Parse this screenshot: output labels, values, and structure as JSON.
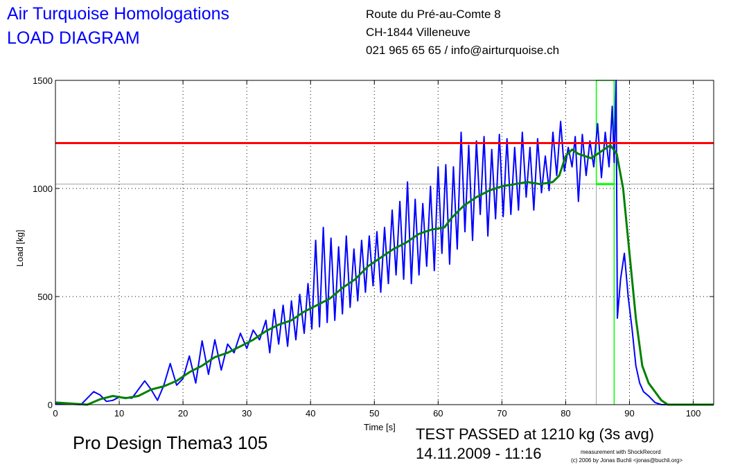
{
  "header": {
    "company": "Air Turquoise Homologations",
    "doc_type": "LOAD DIAGRAM",
    "address_line1": "Route du Pré-au-Comte 8",
    "address_line2": "CH-1844 Villeneuve",
    "contact": "021 965 65 65 / info@airturquoise.ch"
  },
  "footer": {
    "product": "Pro Design Thema3 105",
    "result": "TEST PASSED at 1210 kg (3s avg)",
    "datetime": "14.11.2009 - 11:16",
    "credit_line1": "measurement with ShockRecord",
    "credit_line2": "(c) 2006 by Jonas Buchli <jonas@buchli.org>"
  },
  "chart_data": {
    "type": "line",
    "xlabel": "Time [s]",
    "ylabel": "Load [kg]",
    "xlim": [
      0,
      103.2
    ],
    "ylim": [
      0,
      1500
    ],
    "xticks": [
      0,
      10,
      20,
      30,
      40,
      50,
      60,
      70,
      80,
      90,
      100
    ],
    "yticks": [
      0,
      500,
      1000,
      1500
    ],
    "grid": true,
    "reference_lines": {
      "pass_load": 1210,
      "threshold_load": 1020,
      "window_start": 84.8,
      "window_end": 87.6
    },
    "colors": {
      "raw": "#0000ff",
      "avg": "#008000",
      "pass": "#ff0000",
      "window": "#00ff00",
      "threshold": "#a0a0a0"
    },
    "series": [
      {
        "key": "raw",
        "points": [
          [
            0,
            5
          ],
          [
            4,
            0
          ],
          [
            6,
            60
          ],
          [
            7,
            45
          ],
          [
            8,
            15
          ],
          [
            9,
            20
          ],
          [
            10,
            35
          ],
          [
            12,
            30
          ],
          [
            14,
            110
          ],
          [
            15,
            70
          ],
          [
            16,
            20
          ],
          [
            17,
            90
          ],
          [
            18,
            190
          ],
          [
            19,
            90
          ],
          [
            20,
            120
          ],
          [
            21,
            225
          ],
          [
            22,
            100
          ],
          [
            23,
            295
          ],
          [
            24,
            140
          ],
          [
            25,
            300
          ],
          [
            26,
            160
          ],
          [
            27,
            280
          ],
          [
            28,
            240
          ],
          [
            29,
            330
          ],
          [
            30,
            260
          ],
          [
            31,
            345
          ],
          [
            32,
            300
          ],
          [
            33,
            390
          ],
          [
            33.6,
            240
          ],
          [
            34.3,
            440
          ],
          [
            35,
            280
          ],
          [
            35.7,
            460
          ],
          [
            36.4,
            270
          ],
          [
            37,
            480
          ],
          [
            37.7,
            300
          ],
          [
            38.3,
            510
          ],
          [
            39,
            330
          ],
          [
            39.6,
            560
          ],
          [
            40.2,
            350
          ],
          [
            40.8,
            760
          ],
          [
            41.4,
            360
          ],
          [
            42,
            820
          ],
          [
            42.6,
            380
          ],
          [
            43.2,
            770
          ],
          [
            43.8,
            390
          ],
          [
            44.4,
            730
          ],
          [
            45,
            420
          ],
          [
            45.6,
            780
          ],
          [
            46.2,
            450
          ],
          [
            46.8,
            720
          ],
          [
            47.4,
            480
          ],
          [
            48,
            760
          ],
          [
            48.6,
            520
          ],
          [
            49.2,
            780
          ],
          [
            49.8,
            550
          ],
          [
            50.4,
            800
          ],
          [
            51,
            520
          ],
          [
            51.6,
            820
          ],
          [
            52.2,
            560
          ],
          [
            52.8,
            900
          ],
          [
            53.4,
            600
          ],
          [
            54,
            940
          ],
          [
            54.6,
            580
          ],
          [
            55.2,
            1030
          ],
          [
            55.8,
            560
          ],
          [
            56.4,
            950
          ],
          [
            57,
            600
          ],
          [
            57.6,
            930
          ],
          [
            58.2,
            640
          ],
          [
            58.8,
            1010
          ],
          [
            59.4,
            620
          ],
          [
            60,
            1100
          ],
          [
            60.6,
            700
          ],
          [
            61.2,
            1110
          ],
          [
            61.8,
            650
          ],
          [
            62.4,
            1100
          ],
          [
            63,
            720
          ],
          [
            63.6,
            1260
          ],
          [
            64.2,
            800
          ],
          [
            64.8,
            1200
          ],
          [
            65.4,
            760
          ],
          [
            66,
            1220
          ],
          [
            66.6,
            880
          ],
          [
            67.2,
            1240
          ],
          [
            67.8,
            780
          ],
          [
            68.4,
            1180
          ],
          [
            69,
            860
          ],
          [
            69.6,
            1250
          ],
          [
            70.2,
            870
          ],
          [
            70.8,
            1230
          ],
          [
            71.4,
            880
          ],
          [
            72,
            1190
          ],
          [
            72.6,
            900
          ],
          [
            73.2,
            1260
          ],
          [
            73.8,
            960
          ],
          [
            74.4,
            1190
          ],
          [
            75,
            900
          ],
          [
            75.6,
            1230
          ],
          [
            76.2,
            980
          ],
          [
            76.8,
            1150
          ],
          [
            77.4,
            990
          ],
          [
            78,
            1260
          ],
          [
            78.6,
            1060
          ],
          [
            79.2,
            1310
          ],
          [
            79.8,
            1080
          ],
          [
            80.4,
            1190
          ],
          [
            81,
            1100
          ],
          [
            81.5,
            1240
          ],
          [
            82,
            940
          ],
          [
            82.6,
            1250
          ],
          [
            83.2,
            1060
          ],
          [
            83.8,
            1220
          ],
          [
            84.4,
            1100
          ],
          [
            85,
            1300
          ],
          [
            85.6,
            1050
          ],
          [
            86.2,
            1260
          ],
          [
            86.8,
            1100
          ],
          [
            87.3,
            1380
          ],
          [
            87.6,
            1120
          ],
          [
            87.9,
            1500
          ],
          [
            88.1,
            400
          ],
          [
            88.6,
            580
          ],
          [
            89.2,
            700
          ],
          [
            89.8,
            500
          ],
          [
            90.4,
            350
          ],
          [
            91,
            180
          ],
          [
            91.6,
            100
          ],
          [
            92.2,
            60
          ],
          [
            93,
            40
          ],
          [
            94,
            10
          ],
          [
            95,
            0
          ],
          [
            103.2,
            0
          ]
        ]
      },
      {
        "key": "avg",
        "points": [
          [
            0,
            10
          ],
          [
            5,
            0
          ],
          [
            7,
            25
          ],
          [
            9,
            40
          ],
          [
            11,
            30
          ],
          [
            13,
            40
          ],
          [
            15,
            70
          ],
          [
            17,
            85
          ],
          [
            19,
            110
          ],
          [
            21,
            150
          ],
          [
            23,
            180
          ],
          [
            25,
            220
          ],
          [
            27,
            240
          ],
          [
            29,
            270
          ],
          [
            31,
            300
          ],
          [
            33,
            340
          ],
          [
            35,
            370
          ],
          [
            37,
            390
          ],
          [
            39,
            430
          ],
          [
            41,
            460
          ],
          [
            43,
            490
          ],
          [
            45,
            540
          ],
          [
            47,
            580
          ],
          [
            49,
            640
          ],
          [
            51,
            680
          ],
          [
            53,
            720
          ],
          [
            55,
            750
          ],
          [
            57,
            790
          ],
          [
            59,
            810
          ],
          [
            61,
            820
          ],
          [
            62,
            860
          ],
          [
            64,
            920
          ],
          [
            66,
            960
          ],
          [
            68,
            990
          ],
          [
            70,
            1010
          ],
          [
            72,
            1020
          ],
          [
            74,
            1030
          ],
          [
            76,
            1020
          ],
          [
            78,
            1030
          ],
          [
            79,
            1060
          ],
          [
            80,
            1150
          ],
          [
            81,
            1180
          ],
          [
            82,
            1160
          ],
          [
            84,
            1140
          ],
          [
            85,
            1160
          ],
          [
            86,
            1180
          ],
          [
            87,
            1200
          ],
          [
            88,
            1160
          ],
          [
            89,
            1000
          ],
          [
            90,
            700
          ],
          [
            91,
            400
          ],
          [
            92,
            180
          ],
          [
            93,
            100
          ],
          [
            94,
            60
          ],
          [
            95,
            20
          ],
          [
            96,
            0
          ],
          [
            103.2,
            0
          ]
        ]
      }
    ]
  }
}
